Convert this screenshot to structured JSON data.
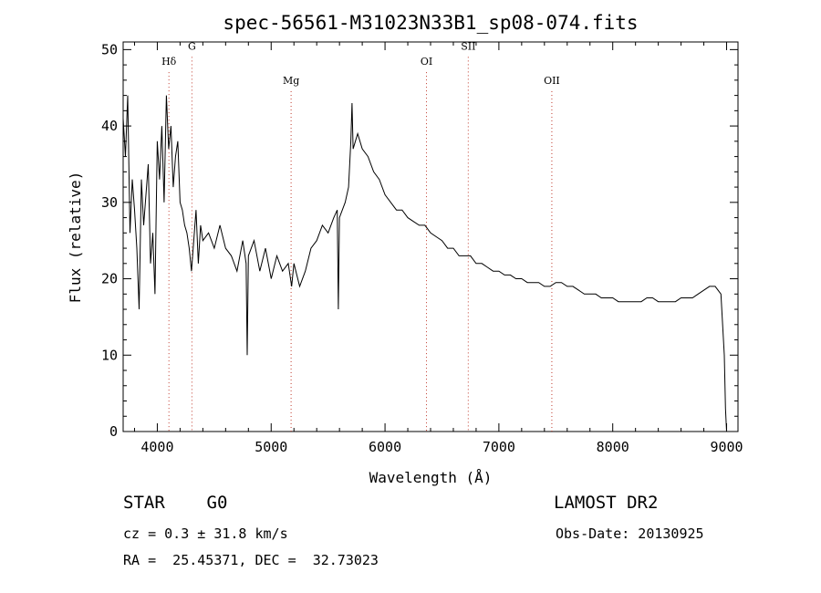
{
  "chart_data": {
    "type": "line",
    "title": "spec-56561-M31023N33B1_sp08-074.fits",
    "xlabel": "Wavelength (Å)",
    "ylabel": "Flux (relative)",
    "xlim": [
      3700,
      9100
    ],
    "ylim": [
      0,
      51
    ],
    "xticks": [
      4000,
      5000,
      6000,
      7000,
      8000,
      9000
    ],
    "yticks": [
      0,
      10,
      20,
      30,
      40,
      50
    ],
    "grid": false,
    "series": [
      {
        "x": [
          3700,
          3720,
          3740,
          3760,
          3780,
          3800,
          3820,
          3840,
          3860,
          3880,
          3900,
          3920,
          3940,
          3960,
          3980,
          4000,
          4020,
          4040,
          4060,
          4080,
          4100,
          4120,
          4140,
          4160,
          4180,
          4200,
          4220,
          4240,
          4260,
          4280,
          4300,
          4320,
          4340,
          4360,
          4380,
          4400,
          4450,
          4500,
          4550,
          4600,
          4650,
          4700,
          4750,
          4780,
          4790,
          4800,
          4850,
          4900,
          4950,
          5000,
          5050,
          5100,
          5150,
          5180,
          5200,
          5250,
          5300,
          5350,
          5400,
          5450,
          5500,
          5550,
          5580,
          5590,
          5600,
          5650,
          5680,
          5700,
          5710,
          5720,
          5740,
          5760,
          5800,
          5850,
          5900,
          5950,
          6000,
          6050,
          6100,
          6150,
          6200,
          6250,
          6300,
          6350,
          6400,
          6450,
          6500,
          6550,
          6600,
          6650,
          6700,
          6750,
          6800,
          6850,
          6900,
          6950,
          7000,
          7050,
          7100,
          7150,
          7200,
          7250,
          7300,
          7350,
          7400,
          7450,
          7500,
          7550,
          7600,
          7650,
          7700,
          7750,
          7800,
          7850,
          7900,
          7950,
          8000,
          8050,
          8100,
          8150,
          8200,
          8250,
          8300,
          8350,
          8400,
          8450,
          8500,
          8550,
          8600,
          8650,
          8700,
          8750,
          8800,
          8850,
          8900,
          8950,
          8980,
          8990,
          9000
        ],
        "y": [
          41,
          36,
          44,
          26,
          33,
          29,
          24,
          16,
          33,
          27,
          31,
          35,
          22,
          26,
          18,
          38,
          33,
          40,
          30,
          44,
          37,
          40,
          32,
          36,
          38,
          30,
          29,
          27,
          26,
          24,
          21,
          25,
          29,
          22,
          27,
          25,
          26,
          24,
          27,
          24,
          23,
          21,
          25,
          22,
          10,
          23,
          25,
          21,
          24,
          20,
          23,
          21,
          22,
          19,
          22,
          19,
          21,
          24,
          25,
          27,
          26,
          28,
          29,
          16,
          28,
          30,
          32,
          38,
          43,
          37,
          38,
          39,
          37,
          36,
          34,
          33,
          31,
          30,
          29,
          29,
          28,
          27.5,
          27,
          27,
          26,
          25.5,
          25,
          24,
          24,
          23,
          23,
          23,
          22,
          22,
          21.5,
          21,
          21,
          20.5,
          20.5,
          20,
          20,
          19.5,
          19.5,
          19.5,
          19,
          19,
          19.5,
          19.5,
          19,
          19,
          18.5,
          18,
          18,
          18,
          17.5,
          17.5,
          17.5,
          17,
          17,
          17,
          17,
          17,
          17.5,
          17.5,
          17,
          17,
          17,
          17,
          17.5,
          17.5,
          17.5,
          18,
          18.5,
          19,
          19,
          18,
          10,
          3,
          0
        ]
      }
    ],
    "spectral_lines": [
      {
        "label": "Hδ",
        "x": 4102,
        "label_y": 48
      },
      {
        "label": "G",
        "x": 4304,
        "label_y": 50
      },
      {
        "label": "Mg",
        "x": 5175,
        "label_y": 45.5
      },
      {
        "label": "OI",
        "x": 6364,
        "label_y": 48
      },
      {
        "label": "SII",
        "x": 6731,
        "label_y": 50
      },
      {
        "label": "OII",
        "x": 7465,
        "label_y": 45.5
      }
    ]
  },
  "info": {
    "star": "STAR    G0",
    "survey": "LAMOST DR2",
    "cz": "cz = 0.3 ± 31.8 km/s",
    "obs_date": "Obs-Date: 20130925",
    "radec": "RA =  25.45371, DEC =  32.73023"
  }
}
